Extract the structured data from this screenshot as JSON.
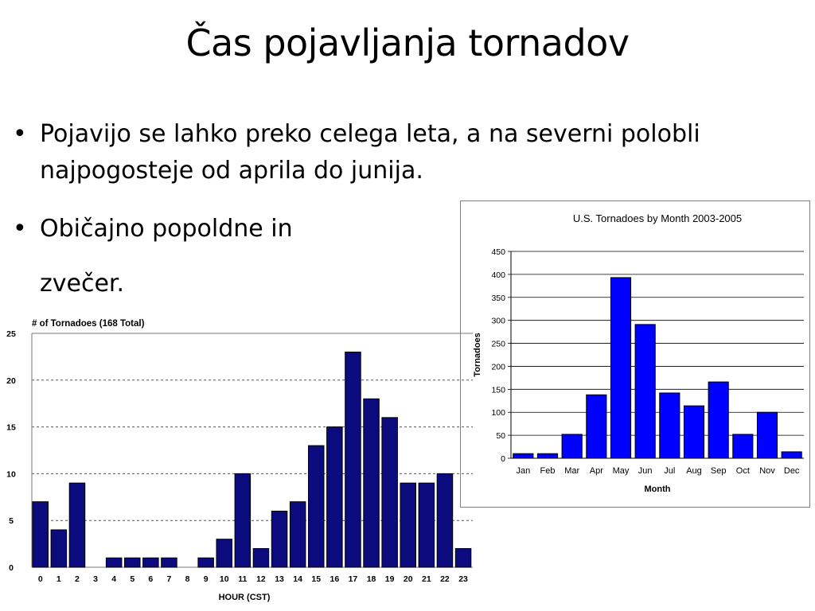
{
  "slide": {
    "title": "Čas pojavljanja tornadov",
    "bullets": [
      {
        "marker": "•",
        "text": "Pojavijo se lahko preko celega leta, a na severni polobli najpogosteje od aprila do junija."
      },
      {
        "marker": "•",
        "text": "Običajno popoldne in",
        "continuation": "zvečer."
      }
    ]
  },
  "chart_data": [
    {
      "type": "bar",
      "title": "U.S. Tornadoes by Month 2003-2005",
      "xlabel": "Month",
      "ylabel": "Tornadoes",
      "ylim": [
        0,
        450
      ],
      "yticks": [
        0,
        50,
        100,
        150,
        200,
        250,
        300,
        350,
        400,
        450
      ],
      "grid": true,
      "categories": [
        "Jan",
        "Feb",
        "Mar",
        "Apr",
        "May",
        "Jun",
        "Jul",
        "Aug",
        "Sep",
        "Oct",
        "Nov",
        "Dec"
      ],
      "values": [
        10,
        10,
        52,
        138,
        393,
        291,
        142,
        114,
        166,
        52,
        100,
        14
      ],
      "bar_color": "#0000ff"
    },
    {
      "type": "bar",
      "title": "# of Tornadoes (168 Total)",
      "xlabel": "HOUR (CST)",
      "ylabel": "",
      "ylim": [
        0,
        25
      ],
      "yticks": [
        0,
        5,
        10,
        15,
        20,
        25
      ],
      "grid": true,
      "categories": [
        "0",
        "1",
        "2",
        "3",
        "4",
        "5",
        "6",
        "7",
        "8",
        "9",
        "10",
        "11",
        "12",
        "13",
        "14",
        "15",
        "16",
        "17",
        "18",
        "19",
        "20",
        "21",
        "22",
        "23"
      ],
      "values": [
        7,
        4,
        9,
        0,
        1,
        1,
        1,
        1,
        0,
        1,
        3,
        10,
        2,
        6,
        7,
        13,
        15,
        23,
        18,
        16,
        9,
        9,
        10,
        2
      ],
      "bar_color": "#0b0b7e"
    }
  ]
}
